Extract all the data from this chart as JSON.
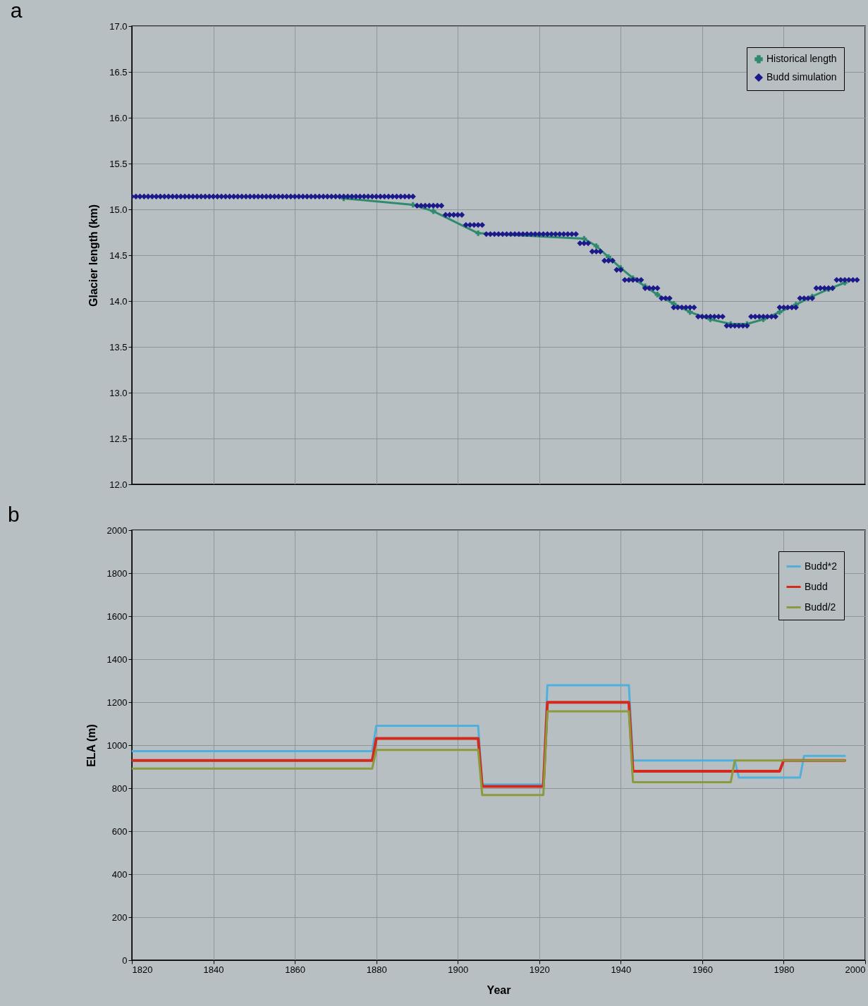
{
  "chart_data": [
    {
      "type": "line",
      "title": "a",
      "ylabel": "Glacier length (km)",
      "xlim": [
        1820,
        2000
      ],
      "ylim": [
        12,
        17
      ],
      "xticks": [
        1820,
        1840,
        1860,
        1880,
        1900,
        1920,
        1940,
        1960,
        1980,
        2000
      ],
      "yticks": [
        {
          "value": 12,
          "label": "12.0"
        },
        {
          "value": 12.5,
          "label": "12.5"
        },
        {
          "value": 13,
          "label": "13.0"
        },
        {
          "value": 13.5,
          "label": "13.5"
        },
        {
          "value": 14,
          "label": "14.0"
        },
        {
          "value": 14.5,
          "label": "14.5"
        },
        {
          "value": 15,
          "label": "15.0"
        },
        {
          "value": 15.5,
          "label": "15.5"
        },
        {
          "value": 16,
          "label": "16.0"
        },
        {
          "value": 16.5,
          "label": "16.5"
        },
        {
          "value": 17,
          "label": "17.0"
        }
      ],
      "grid": true,
      "legend": "top right",
      "tick_labels": "y",
      "series": [
        {
          "name": "Historical length",
          "marker": "cross",
          "color": "#2e8b6e",
          "x": [
            1872,
            1889,
            1894,
            1905,
            1931,
            1934,
            1937,
            1940,
            1943,
            1946,
            1949,
            1953,
            1957,
            1962,
            1967,
            1971,
            1975,
            1979,
            1983,
            1987,
            1991,
            1995
          ],
          "values": [
            15.12,
            15.05,
            14.98,
            14.74,
            14.68,
            14.6,
            14.48,
            14.36,
            14.25,
            14.16,
            14.07,
            13.97,
            13.88,
            13.8,
            13.75,
            13.75,
            13.8,
            13.88,
            13.96,
            14.05,
            14.13,
            14.2
          ]
        },
        {
          "name": "Budd simulation",
          "type": "scatter",
          "marker": "diamond",
          "color": "#1c1a8a",
          "x": [
            1820,
            1821,
            1822,
            1823,
            1824,
            1825,
            1826,
            1827,
            1828,
            1829,
            1830,
            1831,
            1832,
            1833,
            1834,
            1835,
            1836,
            1837,
            1838,
            1839,
            1840,
            1841,
            1842,
            1843,
            1844,
            1845,
            1846,
            1847,
            1848,
            1849,
            1850,
            1851,
            1852,
            1853,
            1854,
            1855,
            1856,
            1857,
            1858,
            1859,
            1860,
            1861,
            1862,
            1863,
            1864,
            1865,
            1866,
            1867,
            1868,
            1869,
            1870,
            1871,
            1872,
            1873,
            1874,
            1875,
            1876,
            1877,
            1878,
            1879,
            1880,
            1881,
            1882,
            1883,
            1884,
            1885,
            1886,
            1887,
            1888,
            1889,
            1890,
            1891,
            1892,
            1893,
            1894,
            1895,
            1896,
            1897,
            1898,
            1899,
            1900,
            1901,
            1902,
            1903,
            1904,
            1905,
            1906,
            1907,
            1908,
            1909,
            1910,
            1911,
            1912,
            1913,
            1914,
            1915,
            1916,
            1917,
            1918,
            1919,
            1920,
            1921,
            1922,
            1923,
            1924,
            1925,
            1926,
            1927,
            1928,
            1929,
            1930,
            1931,
            1932,
            1933,
            1934,
            1935,
            1936,
            1937,
            1938,
            1939,
            1940,
            1941,
            1942,
            1943,
            1944,
            1945,
            1946,
            1947,
            1948,
            1949,
            1950,
            1951,
            1952,
            1953,
            1954,
            1955,
            1956,
            1957,
            1958,
            1959,
            1960,
            1961,
            1962,
            1963,
            1964,
            1965,
            1966,
            1967,
            1968,
            1969,
            1970,
            1971,
            1972,
            1973,
            1974,
            1975,
            1976,
            1977,
            1978,
            1979,
            1980,
            1981,
            1982,
            1983,
            1984,
            1985,
            1986,
            1987,
            1988,
            1989,
            1990,
            1991,
            1992,
            1993,
            1994,
            1995,
            1996,
            1997,
            1998
          ],
          "values": [
            15.14,
            15.14,
            15.14,
            15.14,
            15.14,
            15.14,
            15.14,
            15.14,
            15.14,
            15.14,
            15.14,
            15.14,
            15.14,
            15.14,
            15.14,
            15.14,
            15.14,
            15.14,
            15.14,
            15.14,
            15.14,
            15.14,
            15.14,
            15.14,
            15.14,
            15.14,
            15.14,
            15.14,
            15.14,
            15.14,
            15.14,
            15.14,
            15.14,
            15.14,
            15.14,
            15.14,
            15.14,
            15.14,
            15.14,
            15.14,
            15.14,
            15.14,
            15.14,
            15.14,
            15.14,
            15.14,
            15.14,
            15.14,
            15.14,
            15.14,
            15.14,
            15.14,
            15.14,
            15.14,
            15.14,
            15.14,
            15.14,
            15.14,
            15.14,
            15.14,
            15.14,
            15.14,
            15.14,
            15.14,
            15.14,
            15.14,
            15.14,
            15.14,
            15.14,
            15.14,
            15.04,
            15.04,
            15.04,
            15.04,
            15.04,
            15.04,
            15.04,
            14.94,
            14.94,
            14.94,
            14.94,
            14.94,
            14.83,
            14.83,
            14.83,
            14.83,
            14.83,
            14.73,
            14.73,
            14.73,
            14.73,
            14.73,
            14.73,
            14.73,
            14.73,
            14.73,
            14.73,
            14.73,
            14.73,
            14.73,
            14.73,
            14.73,
            14.73,
            14.73,
            14.73,
            14.73,
            14.73,
            14.73,
            14.73,
            14.73,
            14.63,
            14.63,
            14.63,
            14.54,
            14.54,
            14.54,
            14.44,
            14.44,
            14.44,
            14.34,
            14.34,
            14.23,
            14.23,
            14.23,
            14.23,
            14.23,
            14.14,
            14.14,
            14.14,
            14.14,
            14.03,
            14.03,
            14.03,
            13.93,
            13.93,
            13.93,
            13.93,
            13.93,
            13.93,
            13.83,
            13.83,
            13.83,
            13.83,
            13.83,
            13.83,
            13.83,
            13.73,
            13.73,
            13.73,
            13.73,
            13.73,
            13.73,
            13.83,
            13.83,
            13.83,
            13.83,
            13.83,
            13.83,
            13.83,
            13.93,
            13.93,
            13.93,
            13.93,
            13.93,
            14.03,
            14.03,
            14.03,
            14.03,
            14.14,
            14.14,
            14.14,
            14.14,
            14.14,
            14.23,
            14.23,
            14.23,
            14.23,
            14.23,
            14.23
          ]
        }
      ]
    },
    {
      "type": "line",
      "title": "b",
      "xlabel": "Year",
      "ylabel": "ELA (m)",
      "xlim": [
        1820,
        2000
      ],
      "ylim": [
        0,
        2000
      ],
      "xticks": [
        1820,
        1840,
        1860,
        1880,
        1900,
        1920,
        1940,
        1960,
        1980,
        2000
      ],
      "yticks": [
        0,
        200,
        400,
        600,
        800,
        1000,
        1200,
        1400,
        1600,
        1800,
        2000
      ],
      "grid": true,
      "legend": "top right",
      "marker": "none",
      "series": [
        {
          "name": "Budd*2",
          "color": "#4fb0dc",
          "x": [
            1820,
            1879,
            1880,
            1905,
            1906,
            1921,
            1922,
            1942,
            1943,
            1968,
            1969,
            1984,
            1985,
            1995
          ],
          "values": [
            972,
            972,
            1090,
            1090,
            817,
            817,
            1279,
            1279,
            929,
            929,
            849,
            849,
            950,
            950
          ]
        },
        {
          "name": "Budd",
          "color": "#d42a1e",
          "x": [
            1820,
            1879,
            1880,
            1905,
            1906,
            1921,
            1922,
            1942,
            1943,
            1979,
            1980,
            1995
          ],
          "values": [
            929,
            929,
            1031,
            1031,
            808,
            808,
            1199,
            1199,
            879,
            879,
            929,
            929
          ]
        },
        {
          "name": "Budd/2",
          "color": "#8a9a3c",
          "x": [
            1820,
            1879,
            1880,
            1905,
            1906,
            1921,
            1922,
            1942,
            1943,
            1967,
            1968,
            1995
          ],
          "values": [
            891,
            891,
            978,
            978,
            768,
            768,
            1157,
            1157,
            828,
            828,
            929,
            929
          ]
        }
      ]
    }
  ]
}
